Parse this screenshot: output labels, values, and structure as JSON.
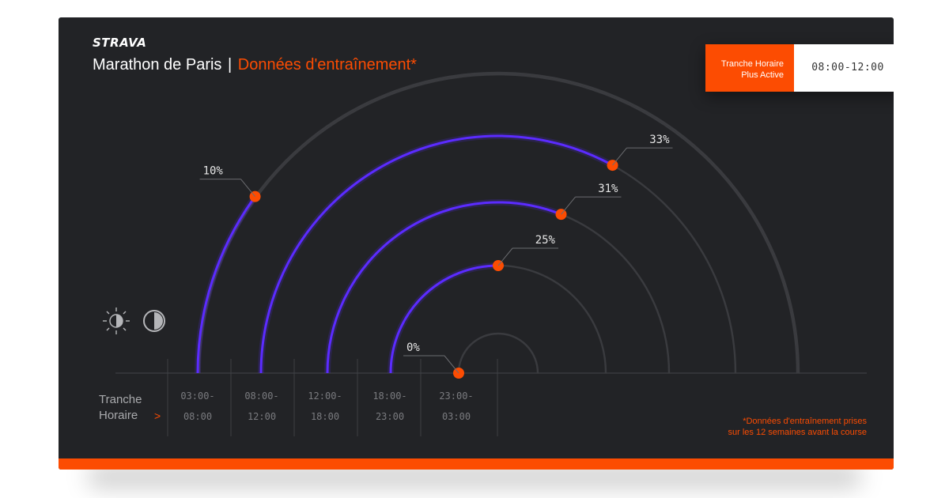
{
  "brand": "STRAVA",
  "header": {
    "title": "Marathon de Paris",
    "separator": "|",
    "subtitle": "Données d'entraînement*"
  },
  "badge": {
    "label_line1": "Tranche Horaire",
    "label_line2": "Plus Active",
    "value": "08:00-12:00"
  },
  "axis": {
    "label_line1": "Tranche",
    "label_line2": "Horaire",
    "arrow": ">"
  },
  "footnote": {
    "line1": "*Données d'entraînement prises",
    "line2": "sur les 12 semaines avant la course"
  },
  "icons": [
    "brightness-icon",
    "contrast-icon"
  ],
  "colors": {
    "background": "#222326",
    "accent": "#fc4c02",
    "series": "#5b2bff",
    "track": "#3a3b3f"
  },
  "chart_data": {
    "type": "radial-bar",
    "max_value": 50,
    "categories": [
      {
        "start": "03:00-",
        "end": "08:00",
        "value": 10,
        "label": "10%"
      },
      {
        "start": "08:00-",
        "end": "12:00",
        "value": 33,
        "label": "33%"
      },
      {
        "start": "12:00-",
        "end": "18:00",
        "value": 31,
        "label": "31%"
      },
      {
        "start": "18:00-",
        "end": "23:00",
        "value": 25,
        "label": "25%"
      },
      {
        "start": "23:00-",
        "end": "03:00",
        "value": 0,
        "label": "0%"
      }
    ]
  }
}
